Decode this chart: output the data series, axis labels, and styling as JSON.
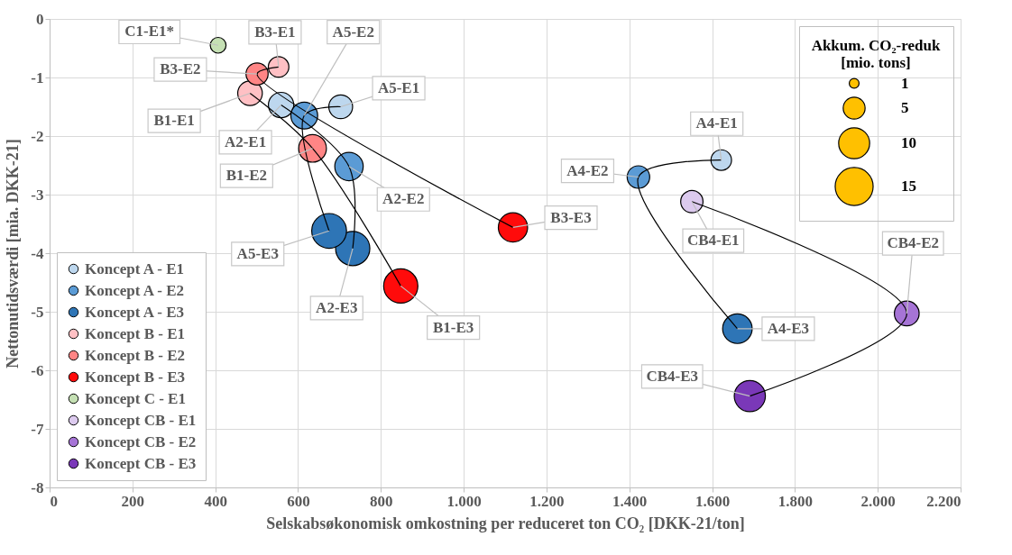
{
  "chart_data": {
    "type": "bubble",
    "xlabel": "Selskabsøkonomisk omkostning per reduceret ton CO₂ [DKK-21/ton]",
    "ylabel": "Nettonutidsværdi [mia. DKK-21]",
    "legend_title": "Akkum. CO₂-reduk\n[mio. tons]",
    "xlim": [
      0,
      2200
    ],
    "xticks": [
      0,
      200,
      400,
      600,
      800,
      {
        "value": 1000,
        "label": "1.000"
      },
      {
        "value": 1200,
        "label": "1.200"
      },
      {
        "value": 1400,
        "label": "1.400"
      },
      {
        "value": 1600,
        "label": "1.600"
      },
      {
        "value": 1800,
        "label": "1.800"
      },
      {
        "value": 2000,
        "label": "2.000"
      },
      {
        "value": 2200,
        "label": "2.200"
      }
    ],
    "ylim": [
      -8,
      0
    ],
    "yticks": [
      0,
      -1,
      -2,
      -3,
      -4,
      -5,
      -6,
      -7,
      -8
    ],
    "grid": true,
    "legend": "bottom left",
    "size_legend": [
      1,
      5,
      10,
      15
    ],
    "series": [
      {
        "name": "Koncept A - E1",
        "color": "#bdd7ee",
        "x": [
          559,
          1622,
          703
        ],
        "values": [
          -1.47,
          -2.41,
          -1.5
        ],
        "sizes": [
          6.7,
          4.4,
          5.9
        ]
      },
      {
        "name": "Koncept A - E2",
        "color": "#5b9bd5",
        "x": [
          723,
          1422,
          615
        ],
        "values": [
          -2.52,
          -2.7,
          -1.65
        ],
        "sizes": [
          8.4,
          5.3,
          7.5
        ]
      },
      {
        "name": "Koncept A - E3",
        "color": "#2e75b6",
        "x": [
          732,
          1661,
          675
        ],
        "values": [
          -3.92,
          -5.29,
          -3.62
        ],
        "sizes": [
          12.2,
          9.1,
          12.6
        ]
      },
      {
        "name": "Koncept B - E1",
        "color": "#ffc0c4",
        "x": [
          484,
          553
        ],
        "values": [
          -1.27,
          -0.82
        ],
        "sizes": [
          6.3,
          4.4
        ]
      },
      {
        "name": "Koncept B - E2",
        "color": "#ff8585",
        "x": [
          635,
          501
        ],
        "values": [
          -2.21,
          -0.94
        ],
        "sizes": [
          8.0,
          5.1
        ]
      },
      {
        "name": "Koncept B - E3",
        "color": "#ff0b0b",
        "x": [
          848,
          1119
        ],
        "values": [
          -4.56,
          -3.56
        ],
        "sizes": [
          12.2,
          8.9
        ]
      },
      {
        "name": "Koncept C - E1",
        "color": "#c5e0b4",
        "x": [
          407
        ],
        "values": [
          -0.45
        ],
        "sizes": [
          2.6
        ]
      },
      {
        "name": "Koncept CB - E1",
        "color": "#dccaee",
        "x": [
          1551
        ],
        "values": [
          -3.12
        ],
        "sizes": [
          5.2
        ]
      },
      {
        "name": "Koncept CB - E2",
        "color": "#a674d6",
        "x": [
          2070
        ],
        "values": [
          -5.03
        ],
        "sizes": [
          6.4
        ]
      },
      {
        "name": "Koncept CB - E3",
        "color": "#7a38b8",
        "x": [
          1691
        ],
        "values": [
          -6.44
        ],
        "sizes": [
          10.1
        ]
      },
      {
        "type": "line",
        "color": "#000000",
        "x": [
          559,
          723,
          732
        ],
        "values": [
          -1.47,
          -2.52,
          -3.92
        ]
      },
      {
        "type": "line",
        "color": "#000000",
        "x": [
          1622,
          1422,
          1661
        ],
        "values": [
          -2.41,
          -2.7,
          -5.29
        ]
      },
      {
        "type": "line",
        "color": "#000000",
        "x": [
          703,
          615,
          675
        ],
        "values": [
          -1.5,
          -1.65,
          -3.62
        ]
      },
      {
        "type": "line",
        "color": "#000000",
        "x": [
          484,
          635,
          848
        ],
        "values": [
          -1.27,
          -2.21,
          -4.56
        ]
      },
      {
        "type": "line",
        "color": "#000000",
        "x": [
          553,
          501,
          1119
        ],
        "values": [
          -0.82,
          -0.94,
          -3.56
        ]
      },
      {
        "type": "line",
        "color": "#000000",
        "x": [
          1551,
          2070,
          1691
        ],
        "values": [
          -3.12,
          -5.03,
          -6.44
        ]
      }
    ],
    "annotations": [
      {
        "text": "C1-E1*",
        "x": 407,
        "y": -0.45
      },
      {
        "text": "B3-E1",
        "x": 553,
        "y": -0.82
      },
      {
        "text": "B3-E2",
        "x": 501,
        "y": -0.94
      },
      {
        "text": "B1-E1",
        "x": 484,
        "y": -1.27
      },
      {
        "text": "A2-E1",
        "x": 559,
        "y": -1.47
      },
      {
        "text": "A5-E2",
        "x": 615,
        "y": -1.65
      },
      {
        "text": "A5-E1",
        "x": 703,
        "y": -1.5
      },
      {
        "text": "B1-E2",
        "x": 635,
        "y": -2.21
      },
      {
        "text": "A2-E2",
        "x": 723,
        "y": -2.52
      },
      {
        "text": "B3-E3",
        "x": 1119,
        "y": -3.56
      },
      {
        "text": "A5-E3",
        "x": 675,
        "y": -3.62
      },
      {
        "text": "A2-E3",
        "x": 732,
        "y": -3.92
      },
      {
        "text": "B1-E3",
        "x": 848,
        "y": -4.56
      },
      {
        "text": "A4-E1",
        "x": 1622,
        "y": -2.41
      },
      {
        "text": "A4-E2",
        "x": 1422,
        "y": -2.7
      },
      {
        "text": "CB4-E1",
        "x": 1551,
        "y": -3.12
      },
      {
        "text": "CB4-E2",
        "x": 2070,
        "y": -5.03
      },
      {
        "text": "A4-E3",
        "x": 1661,
        "y": -5.29
      },
      {
        "text": "CB4-E3",
        "x": 1691,
        "y": -6.44
      }
    ]
  }
}
